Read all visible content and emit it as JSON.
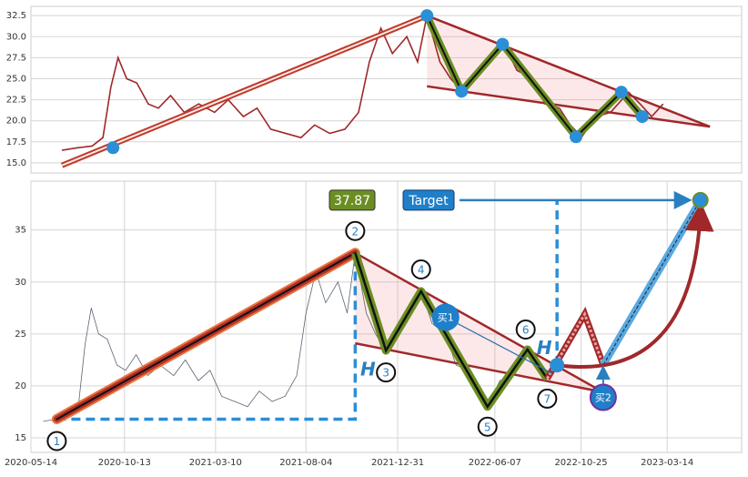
{
  "chart_data": [
    {
      "type": "line",
      "color": "#a0282a",
      "x": [
        "2020-06-03",
        "2020-06-25",
        "2020-07-15",
        "2020-07-30",
        "2020-08-10",
        "2020-08-20",
        "2020-09-01",
        "2020-09-15",
        "2020-10-01",
        "2020-10-15",
        "2020-11-01",
        "2020-11-20",
        "2020-12-10",
        "2021-01-01",
        "2021-01-20",
        "2021-02-10",
        "2021-03-01",
        "2021-03-20",
        "2021-04-10",
        "2021-05-01",
        "2021-05-20",
        "2021-06-10",
        "2021-07-01",
        "2021-07-20",
        "2021-08-04",
        "2021-08-20",
        "2021-09-05",
        "2021-09-25",
        "2021-10-10",
        "2021-10-23",
        "2021-11-10",
        "2021-11-25",
        "2021-12-12",
        "2022-01-01",
        "2022-01-20",
        "2022-02-07",
        "2022-02-25",
        "2022-03-19",
        "2022-04-05",
        "2022-04-25",
        "2022-05-10",
        "2022-05-26",
        "2022-06-15",
        "2022-07-05",
        "2022-07-30",
        "2022-08-15",
        "2022-08-31",
        "2022-09-16"
      ],
      "values": [
        16.5,
        16.8,
        17.0,
        18,
        24,
        27.5,
        25,
        24.5,
        22,
        21.5,
        23,
        21,
        22,
        21,
        22.5,
        20.5,
        21.5,
        19,
        18.5,
        18,
        19.5,
        18.5,
        19,
        21,
        27,
        31,
        28,
        30,
        27,
        32.5,
        27,
        25,
        23.4,
        26,
        27,
        29.1,
        26,
        25,
        22,
        21.5,
        19.5,
        18.1,
        20.5,
        21,
        23.4,
        22,
        20.5,
        22
      ],
      "xlim": [
        "2020-04-21",
        "2023-01-03"
      ],
      "ylim": [
        13.8,
        33.6
      ],
      "yticks": [
        {
          "value": 15,
          "label": "15.0"
        },
        17.5,
        {
          "value": 20,
          "label": "20.0"
        },
        22.5,
        {
          "value": 25,
          "label": "25.0"
        },
        27.5,
        {
          "value": 30,
          "label": "30.0"
        },
        32.5
      ],
      "grid": true,
      "rise": {
        "x": [
          "2020-06-03",
          "2021-10-23"
        ],
        "values": [
          14.7,
          32.5
        ]
      },
      "pattern": {
        "x": [
          "2020-08-13",
          "2021-10-23",
          "2021-12-10",
          "2022-02-05",
          "2022-05-18",
          "2022-07-20",
          "2022-08-18"
        ],
        "values": [
          16.8,
          32.5,
          23.5,
          29.1,
          18.1,
          23.4,
          20.5
        ]
      },
      "upper": {
        "x": [
          "2021-10-23",
          "2022-11-20"
        ],
        "values": [
          32.5,
          19.3
        ]
      },
      "lower": {
        "x": [
          "2021-10-23",
          "2022-11-20"
        ],
        "values": [
          24.1,
          19.3
        ]
      }
    },
    {
      "type": "line",
      "color": "#5a6374",
      "x": [
        "2020-06-03",
        "2020-06-25",
        "2020-07-15",
        "2020-07-30",
        "2020-08-10",
        "2020-08-20",
        "2020-09-01",
        "2020-09-15",
        "2020-10-01",
        "2020-10-15",
        "2020-11-01",
        "2020-11-20",
        "2020-12-10",
        "2021-01-01",
        "2021-01-20",
        "2021-02-10",
        "2021-03-01",
        "2021-03-20",
        "2021-04-10",
        "2021-05-01",
        "2021-05-20",
        "2021-06-10",
        "2021-07-01",
        "2021-07-20",
        "2021-08-04",
        "2021-08-20",
        "2021-09-05",
        "2021-09-25",
        "2021-10-10",
        "2021-10-23",
        "2021-11-10",
        "2021-11-25",
        "2021-12-12",
        "2022-01-01",
        "2022-01-20",
        "2022-02-07",
        "2022-02-25",
        "2022-03-19",
        "2022-04-05",
        "2022-04-25",
        "2022-05-10",
        "2022-05-26",
        "2022-06-15",
        "2022-07-05",
        "2022-07-30",
        "2022-08-15",
        "2022-08-31",
        "2022-09-16"
      ],
      "values": [
        16.6,
        16.8,
        17.0,
        18,
        24,
        27.5,
        25,
        24.5,
        22,
        21.5,
        23,
        21,
        22,
        21,
        22.5,
        20.5,
        21.5,
        19,
        18.5,
        18,
        19.5,
        18.5,
        19,
        21,
        27,
        31,
        28,
        30,
        27,
        32.8,
        27,
        25,
        23.4,
        26,
        27,
        29.1,
        26,
        25,
        22,
        21.5,
        19.5,
        18.0,
        20.5,
        21,
        23.5,
        22,
        20.7,
        22
      ],
      "xlim": [
        "2020-05-14",
        "2023-07-13"
      ],
      "ylim": [
        13.6,
        39.7
      ],
      "xticks": [
        "2020-05-14",
        "2020-10-13",
        "2021-03-10",
        "2021-08-04",
        "2021-12-31",
        "2022-06-07",
        "2022-10-25",
        "2023-03-14"
      ],
      "yticks": [
        15,
        20,
        25,
        30,
        35
      ],
      "grid": true,
      "points": {
        "labels": [
          "1",
          "2",
          "3",
          "4",
          "5",
          "6",
          "7"
        ],
        "x": [
          "2020-06-25",
          "2021-10-23",
          "2021-12-12",
          "2022-02-07",
          "2022-05-26",
          "2022-07-30",
          "2022-08-31"
        ],
        "values": [
          16.8,
          32.8,
          23.4,
          29.1,
          18.0,
          23.5,
          20.7
        ]
      },
      "upper": {
        "x": [
          "2021-10-23",
          "2022-11-30"
        ],
        "values": [
          32.8,
          19.4
        ]
      },
      "lower": {
        "x": [
          "2021-10-23",
          "2022-11-30"
        ],
        "values": [
          24.1,
          19.4
        ]
      },
      "buys": {
        "labels": [
          "买1",
          "买2"
        ],
        "x": [
          "2022-03-19",
          "2022-11-30"
        ],
        "values": [
          26.6,
          18.9
        ]
      },
      "breakout": {
        "x": "2022-09-16",
        "value": 22
      },
      "projection": {
        "x": [
          "2022-08-31",
          "2022-10-31",
          "2022-11-30"
        ],
        "values": [
          20.7,
          26.9,
          22
        ]
      },
      "target": {
        "label": "Target",
        "x": "2023-05-07",
        "value": 37.87,
        "value_label": "37.87"
      },
      "annotation": "H"
    }
  ]
}
